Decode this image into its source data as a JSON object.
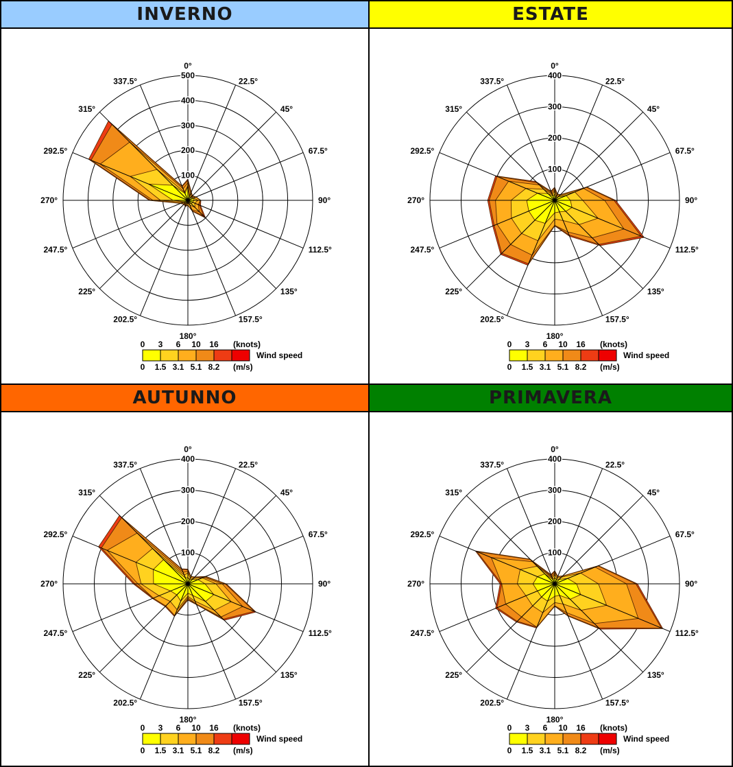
{
  "colors": {
    "band1": "#ffff00",
    "band2": "#ffd21f",
    "band3": "#ffae1d",
    "band4": "#f08a18",
    "band5": "#ee3c14",
    "band6": "#ee0000",
    "winter_header": "#99ccff",
    "summer_header": "#ffff00",
    "autumn_header": "#ff6600",
    "spring_header": "#008000"
  },
  "direction_labels": [
    "0°",
    "22.5°",
    "45°",
    "67.5°",
    "90°",
    "112.5°",
    "135°",
    "157.5°",
    "180°",
    "202.5°",
    "225°",
    "247.5°",
    "270°",
    "292.5°",
    "315°",
    "337.5°"
  ],
  "legend": {
    "knots_ticks": [
      "0",
      "3",
      "6",
      "10",
      "16"
    ],
    "knots_unit": "(knots)",
    "ms_ticks": [
      "0",
      "1.5",
      "3.1",
      "5.1",
      "8.2"
    ],
    "ms_unit": "(m/s)",
    "label": "Wind speed"
  },
  "chart_data": [
    {
      "type": "polar-area",
      "title": "INVERNO",
      "rmax": 500,
      "radial_ticks": [
        "100",
        "200",
        "300",
        "400",
        "500"
      ],
      "directions_deg": [
        0,
        22.5,
        45,
        67.5,
        90,
        112.5,
        135,
        157.5,
        180,
        202.5,
        225,
        247.5,
        270,
        292.5,
        315,
        337.5
      ],
      "series": [
        {
          "values": [
            55,
            15,
            15,
            25,
            25,
            20,
            20,
            10,
            10,
            10,
            15,
            15,
            60,
            170,
            85,
            30
          ]
        },
        {
          "values": [
            60,
            20,
            20,
            25,
            40,
            30,
            40,
            20,
            10,
            20,
            15,
            20,
            110,
            250,
            175,
            35
          ]
        },
        {
          "values": [
            70,
            30,
            22,
            35,
            50,
            45,
            65,
            40,
            20,
            22,
            20,
            30,
            140,
            380,
            330,
            50
          ]
        },
        {
          "values": [
            80,
            35,
            25,
            35,
            50,
            50,
            90,
            45,
            15,
            25,
            20,
            30,
            150,
            420,
            430,
            60
          ]
        },
        {
          "values": [
            85,
            36,
            26,
            36,
            52,
            55,
            100,
            48,
            20,
            27,
            22,
            32,
            155,
            430,
            450,
            62
          ]
        }
      ]
    },
    {
      "type": "polar-area",
      "title": "ESTATE",
      "rmax": 400,
      "radial_ticks": [
        "100",
        "200",
        "300",
        "400"
      ],
      "directions_deg": [
        0,
        22.5,
        45,
        67.5,
        90,
        112.5,
        135,
        157.5,
        180,
        202.5,
        225,
        247.5,
        270,
        292.5,
        315,
        337.5
      ],
      "series": [
        {
          "values": [
            20,
            10,
            15,
            40,
            50,
            60,
            50,
            40,
            40,
            80,
            90,
            90,
            90,
            60,
            30,
            15
          ]
        },
        {
          "values": [
            30,
            15,
            20,
            70,
            90,
            150,
            110,
            70,
            60,
            140,
            150,
            150,
            140,
            100,
            50,
            20
          ]
        },
        {
          "values": [
            35,
            20,
            25,
            100,
            160,
            240,
            170,
            110,
            80,
            190,
            200,
            200,
            190,
            160,
            70,
            25
          ]
        },
        {
          "values": [
            40,
            20,
            25,
            110,
            190,
            300,
            200,
            120,
            80,
            220,
            240,
            210,
            210,
            200,
            80,
            30
          ]
        },
        {
          "values": [
            42,
            22,
            26,
            112,
            195,
            310,
            205,
            125,
            82,
            225,
            245,
            215,
            215,
            205,
            85,
            32
          ]
        }
      ]
    },
    {
      "type": "polar-area",
      "title": "AUTUNNO",
      "rmax": 400,
      "radial_ticks": [
        "100",
        "200",
        "300",
        "400"
      ],
      "directions_deg": [
        0,
        22.5,
        45,
        67.5,
        90,
        112.5,
        135,
        157.5,
        180,
        202.5,
        225,
        247.5,
        270,
        292.5,
        315,
        337.5
      ],
      "series": [
        {
          "values": [
            20,
            15,
            20,
            35,
            55,
            90,
            80,
            40,
            30,
            60,
            50,
            60,
            110,
            120,
            110,
            20
          ]
        },
        {
          "values": [
            35,
            20,
            25,
            50,
            90,
            150,
            120,
            60,
            40,
            90,
            80,
            100,
            150,
            180,
            160,
            30
          ]
        },
        {
          "values": [
            40,
            25,
            30,
            55,
            110,
            190,
            150,
            70,
            45,
            110,
            100,
            120,
            160,
            280,
            230,
            40
          ]
        },
        {
          "values": [
            45,
            25,
            30,
            60,
            120,
            230,
            160,
            70,
            50,
            110,
            100,
            120,
            170,
            300,
            300,
            50
          ]
        },
        {
          "values": [
            47,
            26,
            31,
            62,
            123,
            236,
            165,
            72,
            52,
            113,
            103,
            123,
            175,
            310,
            310,
            52
          ]
        }
      ]
    },
    {
      "type": "polar-area",
      "title": "PRIMAVERA",
      "rmax": 400,
      "radial_ticks": [
        "100",
        "200",
        "300",
        "400"
      ],
      "directions_deg": [
        0,
        22.5,
        45,
        67.5,
        90,
        112.5,
        135,
        157.5,
        180,
        202.5,
        225,
        247.5,
        270,
        292.5,
        315,
        337.5
      ],
      "series": [
        {
          "values": [
            20,
            15,
            20,
            45,
            70,
            90,
            70,
            40,
            40,
            60,
            60,
            60,
            70,
            60,
            45,
            15
          ]
        },
        {
          "values": [
            30,
            20,
            30,
            90,
            140,
            180,
            120,
            70,
            60,
            100,
            100,
            100,
            120,
            120,
            80,
            20
          ]
        },
        {
          "values": [
            35,
            25,
            35,
            140,
            230,
            290,
            180,
            100,
            70,
            150,
            150,
            170,
            170,
            220,
            100,
            25
          ]
        },
        {
          "values": [
            40,
            25,
            35,
            150,
            260,
            370,
            200,
            110,
            70,
            150,
            170,
            200,
            170,
            270,
            110,
            30
          ]
        },
        {
          "values": [
            42,
            26,
            36,
            152,
            265,
            375,
            205,
            112,
            72,
            153,
            173,
            205,
            175,
            275,
            112,
            32
          ]
        }
      ]
    }
  ]
}
